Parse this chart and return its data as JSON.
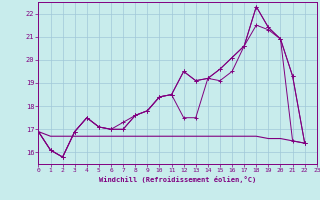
{
  "bg_color": "#c8ecec",
  "line_color": "#800080",
  "grid_color": "#a0c8d8",
  "xlabel": "Windchill (Refroidissement éolien,°C)",
  "xlabel_color": "#800080",
  "tick_color": "#800080",
  "xlim": [
    0,
    23
  ],
  "ylim": [
    15.5,
    22.5
  ],
  "yticks": [
    16,
    17,
    18,
    19,
    20,
    21,
    22
  ],
  "xticks": [
    0,
    1,
    2,
    3,
    4,
    5,
    6,
    7,
    8,
    9,
    10,
    11,
    12,
    13,
    14,
    15,
    16,
    17,
    18,
    19,
    20,
    21,
    22,
    23
  ],
  "series": [
    [
      16.9,
      16.1,
      15.8,
      16.9,
      17.5,
      17.1,
      17.0,
      17.3,
      17.6,
      17.8,
      18.4,
      18.5,
      17.5,
      17.5,
      19.2,
      19.1,
      19.5,
      20.6,
      22.3,
      21.4,
      20.9,
      16.5,
      16.4
    ],
    [
      16.9,
      16.1,
      15.8,
      16.9,
      17.5,
      17.1,
      17.0,
      17.0,
      17.6,
      17.8,
      18.4,
      18.5,
      19.5,
      19.1,
      19.2,
      19.6,
      20.1,
      20.6,
      22.3,
      21.4,
      20.9,
      19.3,
      16.4
    ],
    [
      16.9,
      16.1,
      15.8,
      16.9,
      17.5,
      17.1,
      17.0,
      17.0,
      17.6,
      17.8,
      18.4,
      18.5,
      19.5,
      19.1,
      19.2,
      19.6,
      20.1,
      20.6,
      21.5,
      21.3,
      20.9,
      19.3,
      16.4
    ],
    [
      16.9,
      16.7,
      16.7,
      16.7,
      16.7,
      16.7,
      16.7,
      16.7,
      16.7,
      16.7,
      16.7,
      16.7,
      16.7,
      16.7,
      16.7,
      16.7,
      16.7,
      16.7,
      16.7,
      16.6,
      16.6,
      16.5,
      16.4
    ]
  ]
}
